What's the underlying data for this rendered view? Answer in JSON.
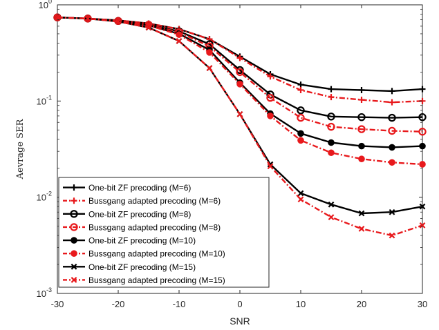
{
  "chart_data": {
    "type": "line",
    "title": "",
    "xlabel": "SNR",
    "ylabel": "Aevrage SER",
    "xlim": [
      -30,
      30
    ],
    "ylim": [
      0.001,
      1
    ],
    "yscale": "log",
    "grid": false,
    "legend_position": "bottom-left",
    "x_ticks": [
      -30,
      -20,
      -10,
      0,
      10,
      20,
      30
    ],
    "y_ticks": [
      {
        "value": 0.001,
        "base": "10",
        "exp": "-3"
      },
      {
        "value": 0.01,
        "base": "10",
        "exp": "-2"
      },
      {
        "value": 0.1,
        "base": "10",
        "exp": "-1"
      },
      {
        "value": 1,
        "base": "10",
        "exp": "0"
      }
    ],
    "x": [
      -30,
      -25,
      -20,
      -15,
      -10,
      -5,
      0,
      5,
      10,
      15,
      20,
      25,
      30
    ],
    "series": [
      {
        "name": "One-bit ZF precoding (M=6)",
        "color": "#000000",
        "dash": "solid",
        "marker": "plus",
        "values": [
          0.74,
          0.72,
          0.69,
          0.64,
          0.56,
          0.44,
          0.29,
          0.19,
          0.148,
          0.133,
          0.13,
          0.127,
          0.133
        ]
      },
      {
        "name": "Bussgang adapted precoding (M=6)",
        "color": "#e8191c",
        "dash": "dashdot",
        "marker": "plus",
        "values": [
          0.74,
          0.72,
          0.69,
          0.64,
          0.56,
          0.44,
          0.28,
          0.18,
          0.13,
          0.11,
          0.103,
          0.097,
          0.1
        ]
      },
      {
        "name": "One-bit ZF precoding (M=8)",
        "color": "#000000",
        "dash": "solid",
        "marker": "circle",
        "values": [
          0.74,
          0.72,
          0.68,
          0.62,
          0.53,
          0.39,
          0.21,
          0.117,
          0.08,
          0.069,
          0.068,
          0.067,
          0.068
        ]
      },
      {
        "name": "Bussgang adapted precoding (M=8)",
        "color": "#e8191c",
        "dash": "dashdot",
        "marker": "circle",
        "values": [
          0.74,
          0.72,
          0.68,
          0.62,
          0.52,
          0.37,
          0.2,
          0.108,
          0.067,
          0.054,
          0.051,
          0.049,
          0.048
        ]
      },
      {
        "name": "One-bit ZF precoding (M=10)",
        "color": "#000000",
        "dash": "solid",
        "marker": "dot",
        "values": [
          0.74,
          0.72,
          0.68,
          0.61,
          0.5,
          0.34,
          0.155,
          0.074,
          0.046,
          0.037,
          0.034,
          0.033,
          0.034
        ]
      },
      {
        "name": "Bussgang adapted precoding (M=10)",
        "color": "#e8191c",
        "dash": "dashdot",
        "marker": "dot",
        "values": [
          0.74,
          0.72,
          0.68,
          0.61,
          0.49,
          0.32,
          0.15,
          0.07,
          0.039,
          0.029,
          0.025,
          0.023,
          0.022
        ]
      },
      {
        "name": "One-bit ZF precoding (M=15)",
        "color": "#000000",
        "dash": "solid",
        "marker": "cross",
        "values": [
          0.74,
          0.72,
          0.67,
          0.58,
          0.42,
          0.22,
          0.073,
          0.022,
          0.011,
          0.0084,
          0.0068,
          0.007,
          0.008
        ]
      },
      {
        "name": "Bussgang adapted precoding (M=15)",
        "color": "#e8191c",
        "dash": "dashdot",
        "marker": "cross",
        "values": [
          0.74,
          0.72,
          0.67,
          0.58,
          0.42,
          0.22,
          0.073,
          0.021,
          0.0095,
          0.0062,
          0.0047,
          0.004,
          0.0051
        ]
      }
    ]
  }
}
